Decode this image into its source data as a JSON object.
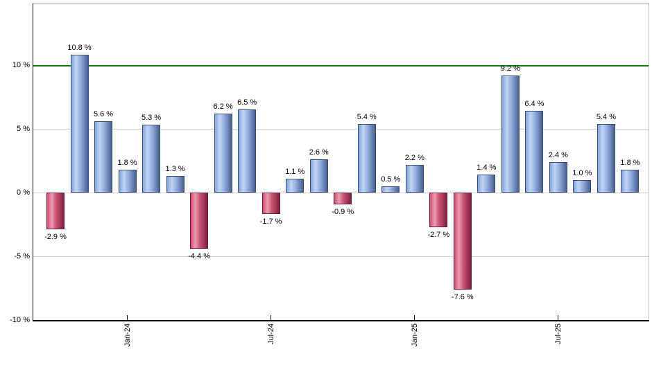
{
  "page": {
    "background_color": "#ffffff"
  },
  "chart_data": {
    "type": "bar",
    "title": "",
    "xlabel": "",
    "ylabel": "",
    "grid": true,
    "ylim": [
      -10,
      14.8
    ],
    "y_ticks": [
      {
        "value": 10,
        "label": "10 %"
      },
      {
        "value": 5,
        "label": "5 %"
      },
      {
        "value": 0,
        "label": "0 %"
      },
      {
        "value": -5,
        "label": "-5 %"
      },
      {
        "value": -10,
        "label": "-10 %"
      }
    ],
    "x_ticks": [
      {
        "bar_index": 3,
        "label": "Jan-24"
      },
      {
        "bar_index": 9,
        "label": "Jul-24"
      },
      {
        "bar_index": 15,
        "label": "Jan-25"
      },
      {
        "bar_index": 21,
        "label": "Jul-25"
      }
    ],
    "reference_line": {
      "value": 10,
      "color": "#067b06"
    },
    "bars": [
      {
        "value": -2.9,
        "label": "-2.9 %"
      },
      {
        "value": 10.8,
        "label": "10.8 %"
      },
      {
        "value": 5.6,
        "label": "5.6 %"
      },
      {
        "value": 1.8,
        "label": "1.8 %"
      },
      {
        "value": 5.3,
        "label": "5.3 %"
      },
      {
        "value": 1.3,
        "label": "1.3 %"
      },
      {
        "value": -4.4,
        "label": "-4.4 %"
      },
      {
        "value": 6.2,
        "label": "6.2 %"
      },
      {
        "value": 6.5,
        "label": "6.5 %"
      },
      {
        "value": -1.7,
        "label": "-1.7 %"
      },
      {
        "value": 1.1,
        "label": "1.1 %"
      },
      {
        "value": 2.6,
        "label": "2.6 %"
      },
      {
        "value": -0.9,
        "label": "-0.9 %"
      },
      {
        "value": 5.4,
        "label": "5.4 %"
      },
      {
        "value": 0.5,
        "label": "0.5 %"
      },
      {
        "value": 2.2,
        "label": "2.2 %"
      },
      {
        "value": -2.7,
        "label": "-2.7 %"
      },
      {
        "value": -7.6,
        "label": "-7.6 %"
      },
      {
        "value": 1.4,
        "label": "1.4 %"
      },
      {
        "value": 9.2,
        "label": "9.2 %"
      },
      {
        "value": 6.4,
        "label": "6.4 %"
      },
      {
        "value": 2.4,
        "label": "2.4 %"
      },
      {
        "value": 1.0,
        "label": "1.0 %"
      },
      {
        "value": 5.4,
        "label": "5.4 %"
      },
      {
        "value": 1.8,
        "label": "1.8 %"
      }
    ],
    "colors": {
      "positive": {
        "edge": "#7fa5dc",
        "highlight": "#c2d4f2",
        "mid": "#93afdf",
        "dark": "#46608f",
        "border": "#3a4f78"
      },
      "negative": {
        "edge": "#d24a70",
        "highlight": "#ec9db2",
        "mid": "#c9536f",
        "dark": "#7e2040",
        "border": "#6b1c36"
      },
      "gridline": "#d0d0d0",
      "axis": "#000000",
      "plot_border": "#a8a8a8",
      "label_text": "#000000"
    }
  }
}
